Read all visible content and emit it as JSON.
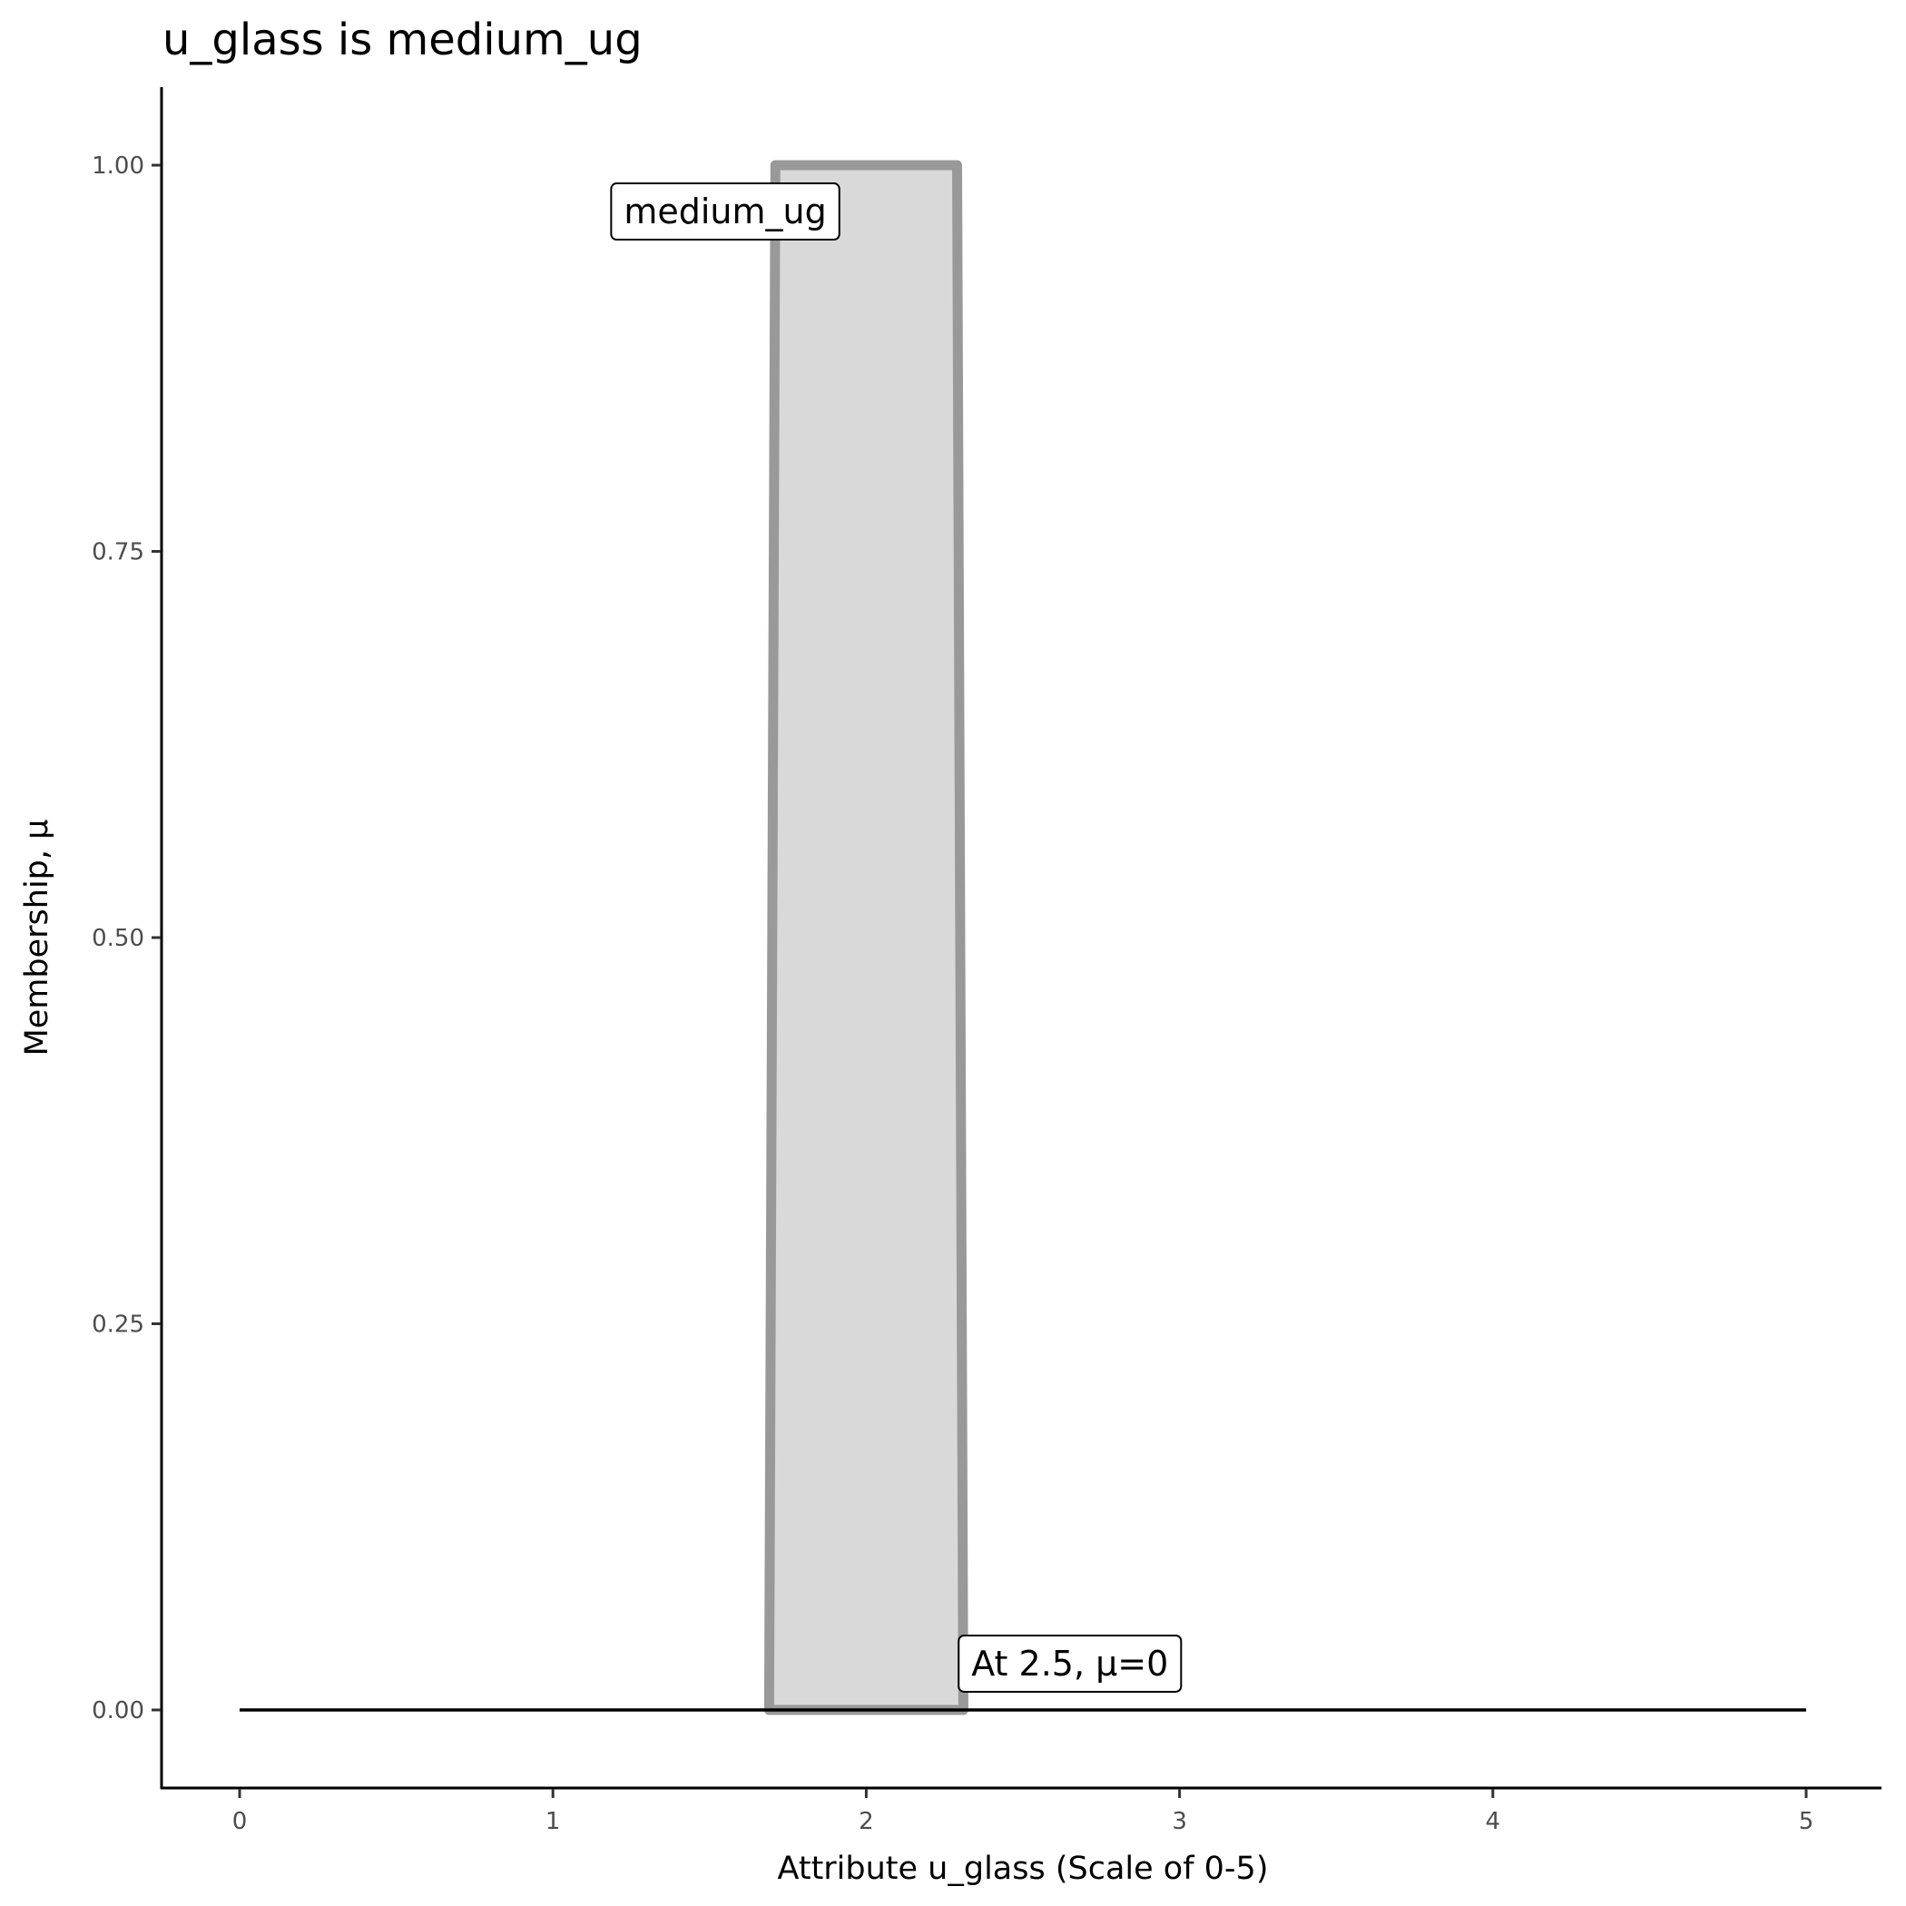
{
  "chart_data": {
    "type": "area",
    "title": "u_glass is medium_ug",
    "xlabel": "Attribute u_glass (Scale of 0-5)",
    "ylabel": "Membership, μ",
    "xlim": [
      -0.25,
      5.25
    ],
    "ylim": [
      -0.05,
      1.05
    ],
    "x_ticks": [
      "0",
      "1",
      "2",
      "3",
      "4",
      "5"
    ],
    "y_ticks": [
      "0.00",
      "0.25",
      "0.50",
      "0.75",
      "1.00"
    ],
    "grid": false,
    "series": [
      {
        "name": "medium_ug",
        "points": [
          [
            1.69,
            0
          ],
          [
            1.71,
            1
          ],
          [
            2.29,
            1
          ],
          [
            2.31,
            0
          ]
        ],
        "fill": "#d9d9d9",
        "stroke": "#999999"
      }
    ],
    "baseline": {
      "points": [
        [
          0,
          0
        ],
        [
          5,
          0
        ]
      ],
      "color": "#000000"
    },
    "annotations": [
      {
        "text": "medium_ug",
        "x": 1.55,
        "y": 0.97
      },
      {
        "text": "At 2.5, μ=0",
        "x": 2.65,
        "y": 0.03
      }
    ]
  }
}
